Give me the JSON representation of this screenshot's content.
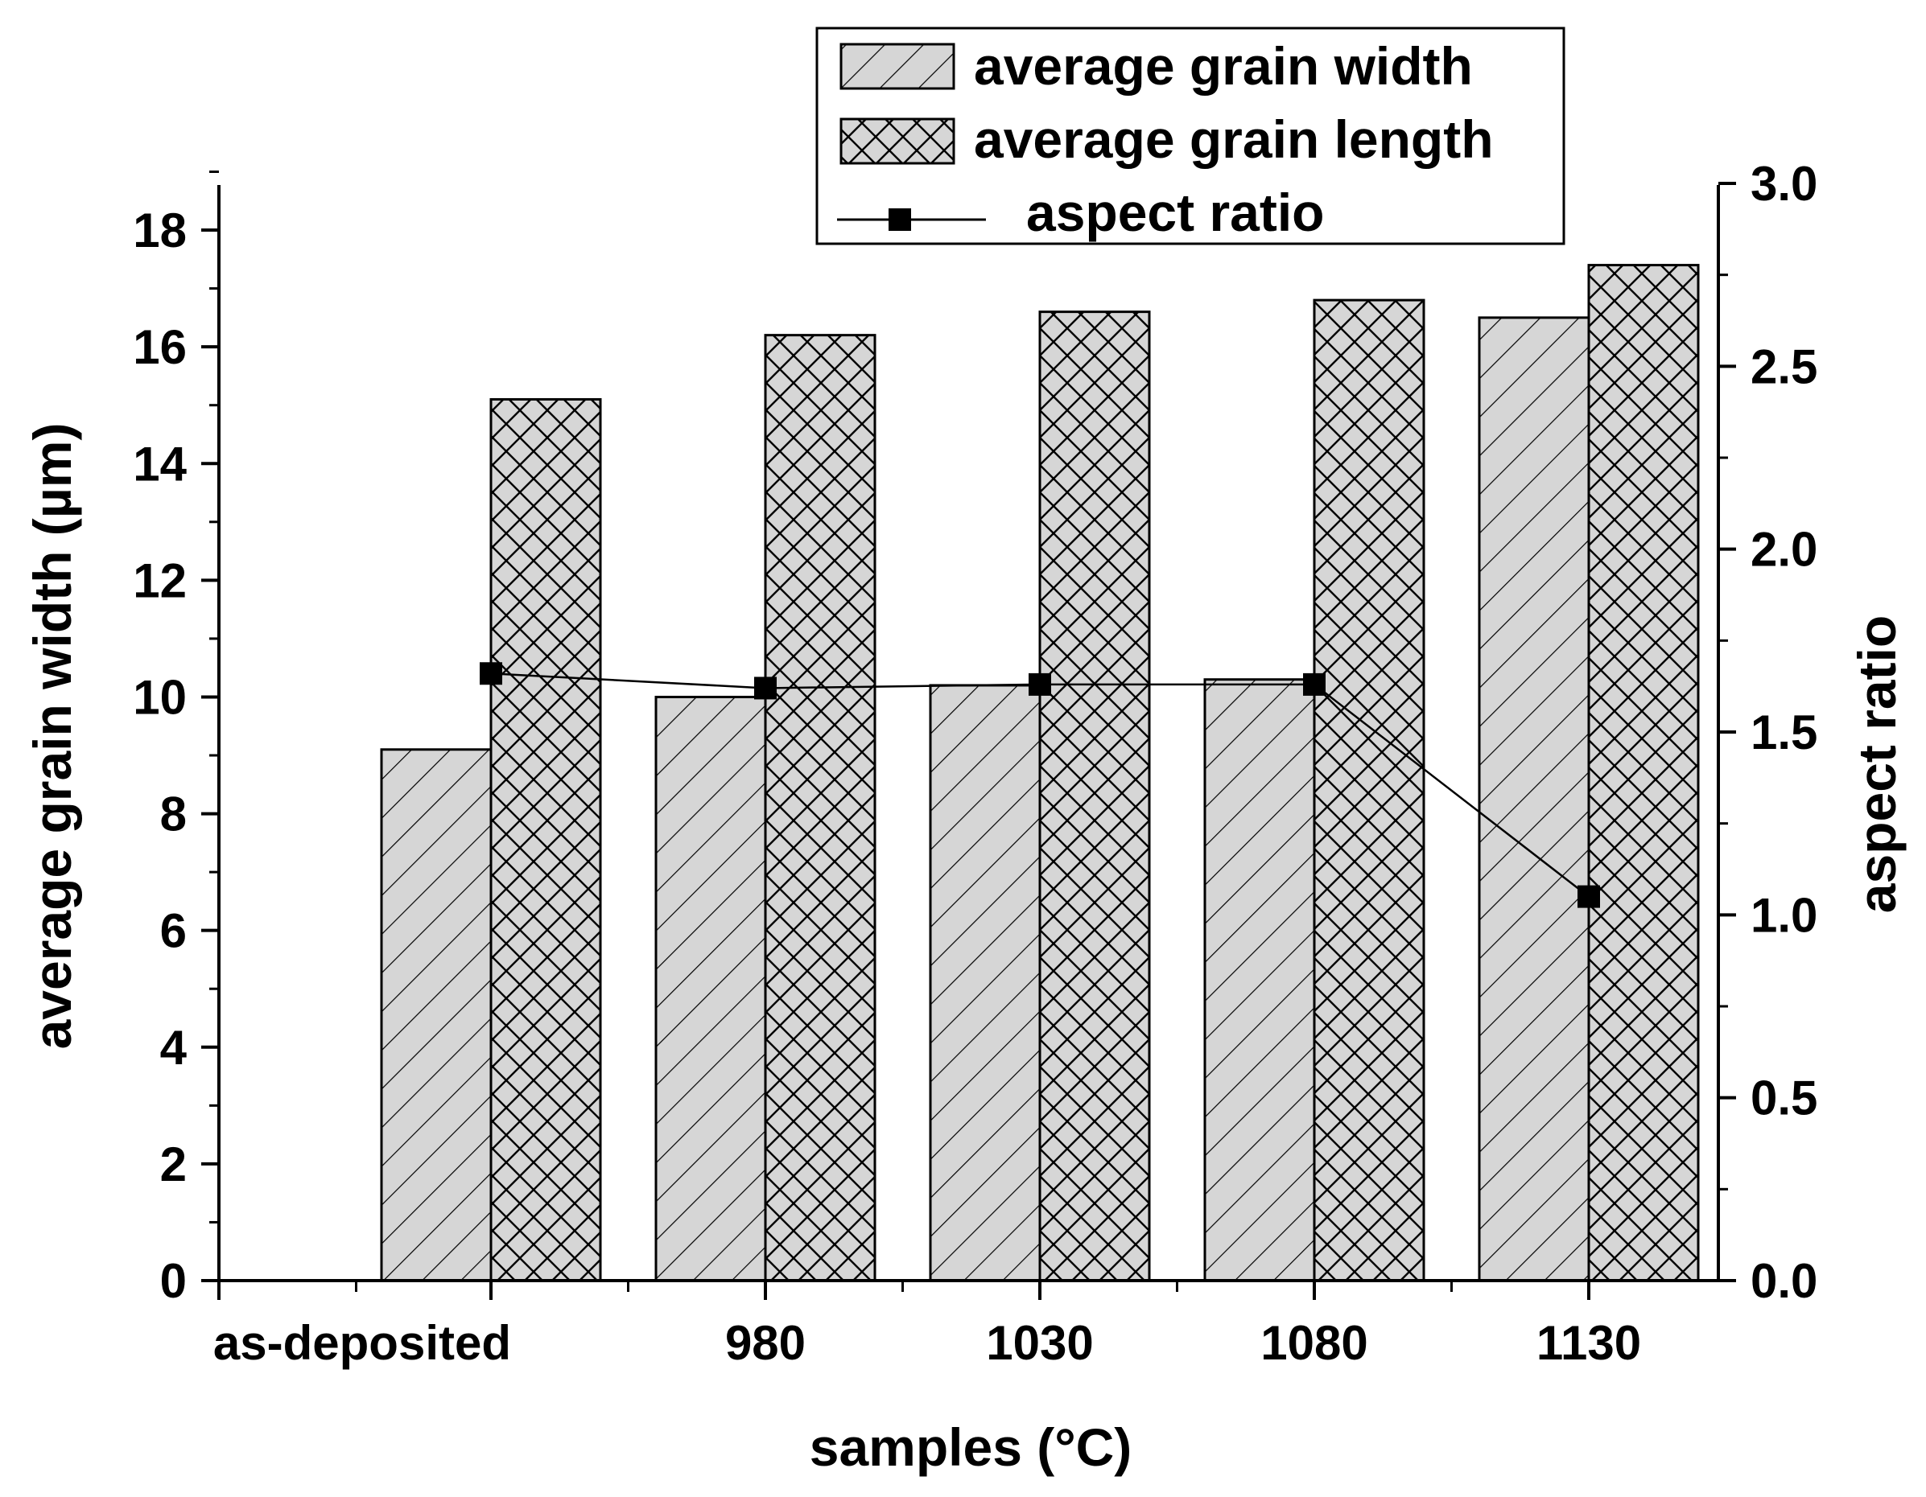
{
  "chart_data": {
    "type": "bar",
    "categories": [
      "as-deposited",
      "980",
      "1030",
      "1080",
      "1130"
    ],
    "series": [
      {
        "name": "average grain width",
        "kind": "bar",
        "axis": "left",
        "pattern": "diagonal-hatch",
        "values": [
          9.1,
          10.0,
          10.2,
          10.3,
          16.5
        ]
      },
      {
        "name": "average grain length",
        "kind": "bar",
        "axis": "left",
        "pattern": "cross-hatch",
        "values": [
          15.1,
          16.2,
          16.6,
          16.8,
          17.4
        ]
      },
      {
        "name": "aspect ratio",
        "kind": "line",
        "axis": "right",
        "marker": "square",
        "values": [
          1.66,
          1.62,
          1.63,
          1.63,
          1.05
        ]
      }
    ],
    "xlabel": "samples (°C)",
    "ylabel": "average grain width (µm)",
    "y2label": "aspect ratio",
    "ylim": [
      0,
      18.8
    ],
    "y2lim": [
      0,
      3.0
    ],
    "yticks": [
      0,
      2,
      4,
      6,
      8,
      10,
      12,
      14,
      16,
      18
    ],
    "ytick_labels": [
      "0",
      "2",
      "4",
      "6",
      "8",
      "10",
      "12",
      "14",
      "16",
      "18"
    ],
    "y2ticks": [
      0,
      0.5,
      1.0,
      1.5,
      2.0,
      2.5,
      3.0
    ],
    "y2tick_labels": [
      "0.0",
      "0.5",
      "1.0",
      "1.5",
      "2.0",
      "2.5",
      "3.0"
    ],
    "grid": false,
    "legend_position": "top-right",
    "colors": {
      "bar_fill": "#d6d6d6",
      "stroke": "#000000",
      "background": "#ffffff"
    }
  }
}
